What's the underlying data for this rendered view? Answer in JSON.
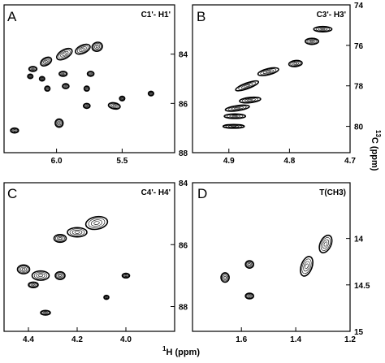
{
  "figure": {
    "x_title_sup": "1",
    "x_title_main": "H (ppm)",
    "y_title_sup": "13",
    "y_title_main": "C (ppm)"
  },
  "chart_data": [
    {
      "type": "contour",
      "panel_letter": "A",
      "title": "C1'- H1'",
      "x_ticks": [
        "6.0",
        "5.5"
      ],
      "y_ticks": [
        "84",
        "86",
        "88"
      ],
      "xlim": [
        6.4,
        5.1
      ],
      "ylim": [
        82.0,
        88.0
      ],
      "peaks": [
        {
          "x": 5.94,
          "y": 84.0,
          "wx": 0.13,
          "wy": 0.35,
          "rot": -30
        },
        {
          "x": 5.8,
          "y": 83.8,
          "wx": 0.12,
          "wy": 0.33,
          "rot": -25
        },
        {
          "x": 5.69,
          "y": 83.7,
          "wx": 0.08,
          "wy": 0.36,
          "rot": -20
        },
        {
          "x": 6.08,
          "y": 84.3,
          "wx": 0.09,
          "wy": 0.3,
          "rot": -30
        },
        {
          "x": 6.18,
          "y": 84.6,
          "wx": 0.06,
          "wy": 0.2,
          "rot": 0
        },
        {
          "x": 6.2,
          "y": 84.9,
          "wx": 0.04,
          "wy": 0.18,
          "rot": 0
        },
        {
          "x": 6.11,
          "y": 85.0,
          "wx": 0.04,
          "wy": 0.18,
          "rot": 0
        },
        {
          "x": 5.95,
          "y": 84.8,
          "wx": 0.06,
          "wy": 0.2,
          "rot": 0
        },
        {
          "x": 5.74,
          "y": 84.8,
          "wx": 0.05,
          "wy": 0.2,
          "rot": 0
        },
        {
          "x": 6.07,
          "y": 85.4,
          "wx": 0.04,
          "wy": 0.2,
          "rot": 0
        },
        {
          "x": 5.93,
          "y": 85.3,
          "wx": 0.05,
          "wy": 0.2,
          "rot": 0
        },
        {
          "x": 5.77,
          "y": 85.4,
          "wx": 0.04,
          "wy": 0.2,
          "rot": 0
        },
        {
          "x": 5.5,
          "y": 85.8,
          "wx": 0.04,
          "wy": 0.18,
          "rot": 0
        },
        {
          "x": 5.28,
          "y": 85.6,
          "wx": 0.04,
          "wy": 0.18,
          "rot": 0
        },
        {
          "x": 5.56,
          "y": 86.1,
          "wx": 0.09,
          "wy": 0.25,
          "rot": 10
        },
        {
          "x": 5.77,
          "y": 86.1,
          "wx": 0.05,
          "wy": 0.2,
          "rot": 0
        },
        {
          "x": 5.98,
          "y": 86.8,
          "wx": 0.06,
          "wy": 0.33,
          "rot": 0
        },
        {
          "x": 6.32,
          "y": 87.1,
          "wx": 0.06,
          "wy": 0.2,
          "rot": 0
        }
      ]
    },
    {
      "type": "contour",
      "panel_letter": "B",
      "title": "C3'- H3'",
      "x_ticks": [
        "4.9",
        "4.8",
        "4.7"
      ],
      "y_ticks": [
        "74",
        "76",
        "78",
        "80"
      ],
      "xlim": [
        4.96,
        4.7
      ],
      "ylim": [
        74.0,
        81.3
      ],
      "peaks": [
        {
          "x": 4.745,
          "y": 75.2,
          "wx": 0.03,
          "wy": 0.26,
          "rot": 0
        },
        {
          "x": 4.763,
          "y": 75.8,
          "wx": 0.022,
          "wy": 0.3,
          "rot": 0
        },
        {
          "x": 4.79,
          "y": 76.9,
          "wx": 0.022,
          "wy": 0.3,
          "rot": -6
        },
        {
          "x": 4.835,
          "y": 77.3,
          "wx": 0.035,
          "wy": 0.3,
          "rot": -14
        },
        {
          "x": 4.87,
          "y": 78.0,
          "wx": 0.04,
          "wy": 0.28,
          "rot": -20
        },
        {
          "x": 4.865,
          "y": 78.7,
          "wx": 0.035,
          "wy": 0.26,
          "rot": -6
        },
        {
          "x": 4.886,
          "y": 79.1,
          "wx": 0.04,
          "wy": 0.25,
          "rot": -8
        },
        {
          "x": 4.89,
          "y": 79.5,
          "wx": 0.035,
          "wy": 0.22,
          "rot": 0
        },
        {
          "x": 4.892,
          "y": 80.0,
          "wx": 0.035,
          "wy": 0.18,
          "rot": 0
        }
      ]
    },
    {
      "type": "contour",
      "panel_letter": "C",
      "title": "C4'- H4'",
      "x_ticks": [
        "4.4",
        "4.2",
        "4.0"
      ],
      "y_ticks": [
        "84",
        "86",
        "88"
      ],
      "xlim": [
        4.5,
        3.8
      ],
      "ylim": [
        84.0,
        88.8
      ],
      "peaks": [
        {
          "x": 4.12,
          "y": 85.3,
          "wx": 0.09,
          "wy": 0.4,
          "rot": -10
        },
        {
          "x": 4.2,
          "y": 85.6,
          "wx": 0.08,
          "wy": 0.3,
          "rot": 0
        },
        {
          "x": 4.27,
          "y": 85.8,
          "wx": 0.05,
          "wy": 0.25,
          "rot": 0
        },
        {
          "x": 4.42,
          "y": 86.8,
          "wx": 0.05,
          "wy": 0.28,
          "rot": 0
        },
        {
          "x": 4.35,
          "y": 87.0,
          "wx": 0.07,
          "wy": 0.3,
          "rot": 0
        },
        {
          "x": 4.27,
          "y": 87.0,
          "wx": 0.04,
          "wy": 0.25,
          "rot": 0
        },
        {
          "x": 4.0,
          "y": 87.0,
          "wx": 0.03,
          "wy": 0.15,
          "rot": 0
        },
        {
          "x": 4.38,
          "y": 87.3,
          "wx": 0.04,
          "wy": 0.18,
          "rot": 0
        },
        {
          "x": 4.08,
          "y": 87.7,
          "wx": 0.02,
          "wy": 0.13,
          "rot": 0
        },
        {
          "x": 4.33,
          "y": 88.2,
          "wx": 0.04,
          "wy": 0.15,
          "rot": 0
        }
      ]
    },
    {
      "type": "contour",
      "panel_letter": "D",
      "title": "T(CH3)",
      "x_ticks": [
        "1.6",
        "1.4",
        "1.2"
      ],
      "y_ticks": [
        "14",
        "14.5",
        "15"
      ],
      "xlim": [
        1.78,
        1.2
      ],
      "ylim": [
        13.4,
        15.0
      ],
      "peaks": [
        {
          "x": 1.29,
          "y": 14.06,
          "wx": 0.04,
          "wy": 0.2,
          "rot": 25
        },
        {
          "x": 1.36,
          "y": 14.3,
          "wx": 0.04,
          "wy": 0.22,
          "rot": 20
        },
        {
          "x": 1.57,
          "y": 14.28,
          "wx": 0.03,
          "wy": 0.08,
          "rot": 0
        },
        {
          "x": 1.66,
          "y": 14.42,
          "wx": 0.03,
          "wy": 0.1,
          "rot": 0
        },
        {
          "x": 1.57,
          "y": 14.62,
          "wx": 0.03,
          "wy": 0.06,
          "rot": 0
        }
      ]
    }
  ]
}
